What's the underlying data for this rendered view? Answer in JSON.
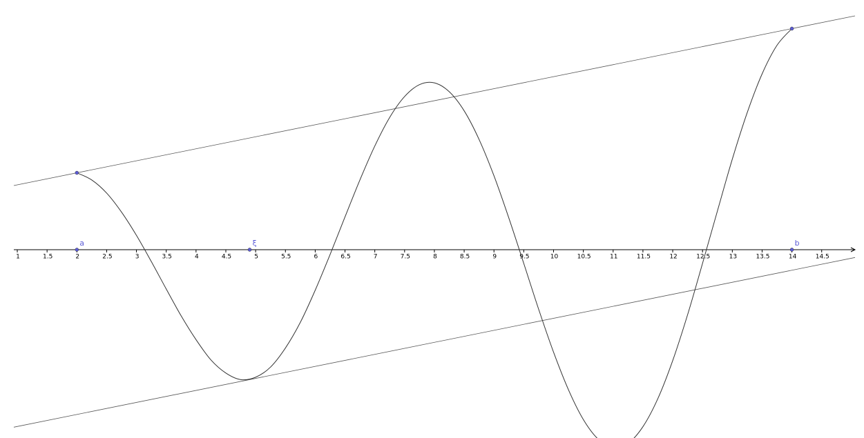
{
  "chart_data": {
    "type": "line",
    "x": [
      2,
      2.25,
      2.5,
      2.75,
      3,
      3.25,
      3.5,
      3.75,
      4,
      4.25,
      4.5,
      4.75,
      5,
      5.25,
      5.5,
      5.75,
      6,
      6.25,
      6.5,
      6.75,
      7,
      7.25,
      7.5,
      7.75,
      8,
      8.25,
      8.5,
      8.75,
      9,
      9.25,
      9.5,
      9.75,
      10,
      10.25,
      10.5,
      10.75,
      11,
      11.25,
      11.5,
      11.75,
      12,
      12.25,
      12.5,
      12.75,
      13,
      13.25,
      13.5,
      13.75,
      14
    ],
    "values": [
      1.29,
      1.17,
      0.95,
      0.63,
      0.24,
      -0.2,
      -0.66,
      -1.11,
      -1.51,
      -1.85,
      -2.07,
      -2.18,
      -2.14,
      -1.97,
      -1.65,
      -1.22,
      -0.68,
      -0.08,
      0.55,
      1.17,
      1.74,
      2.22,
      2.57,
      2.77,
      2.8,
      2.65,
      2.33,
      1.85,
      1.24,
      0.53,
      -0.23,
      -1,
      -1.72,
      -2.35,
      -2.85,
      -3.18,
      -3.32,
      -3.25,
      -2.97,
      -2.5,
      -1.86,
      -1.09,
      -0.23,
      0.65,
      1.52,
      2.3,
      2.95,
      3.43,
      3.71
    ],
    "xlim": [
      0.71,
      15.21
    ],
    "ylim": [
      -3.16,
      4.19
    ],
    "xticks": [
      1,
      1.5,
      2,
      2.5,
      3,
      3.5,
      4,
      4.5,
      5,
      5.5,
      6,
      6.5,
      7,
      7.5,
      8,
      8.5,
      9,
      9.5,
      10,
      10.5,
      11,
      11.5,
      12,
      12.5,
      13,
      13.5,
      14,
      14.5
    ],
    "points": [
      {
        "label": "a",
        "x": 2
      },
      {
        "label": "ξ",
        "x": 4.9
      },
      {
        "label": "b",
        "x": 14
      }
    ],
    "xi_value": -2.18,
    "color": "#333333",
    "point_color": "#5b5bd6"
  }
}
